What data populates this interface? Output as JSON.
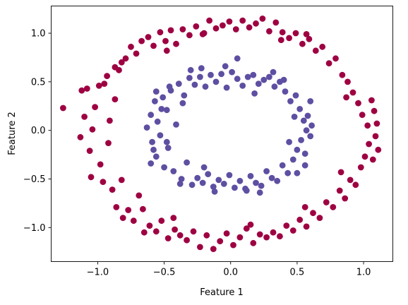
{
  "chart_data": {
    "type": "scatter",
    "title": "",
    "xlabel": "Feature 1",
    "ylabel": "Feature 2",
    "xlim": [
      -1.35,
      1.22
    ],
    "ylim": [
      -1.35,
      1.28
    ],
    "xticks": [
      -1.0,
      -0.5,
      0.0,
      0.5,
      1.0
    ],
    "xtick_labels": [
      "−1.0",
      "−0.5",
      "0.0",
      "0.5",
      "1.0"
    ],
    "yticks": [
      -1.0,
      -0.5,
      0.0,
      0.5,
      1.0
    ],
    "ytick_labels": [
      "−1.0",
      "−0.5",
      "0.0",
      "0.5",
      "1.0"
    ],
    "grid": false,
    "legend": "none",
    "series": [
      {
        "color": "#9e0142",
        "shape": "circle",
        "points": [
          [
            -1.26,
            0.23
          ],
          [
            -1.13,
            -0.07
          ],
          [
            -1.12,
            0.41
          ],
          [
            -1.1,
            0.14
          ],
          [
            -1.08,
            0.43
          ],
          [
            -1.06,
            -0.21
          ],
          [
            -1.05,
            -0.48
          ],
          [
            -1.04,
            0.01
          ],
          [
            -1.02,
            0.24
          ],
          [
            -0.99,
            0.46
          ],
          [
            -0.98,
            -0.35
          ],
          [
            -0.96,
            -0.53
          ],
          [
            -0.95,
            0.48
          ],
          [
            -0.93,
            0.56
          ],
          [
            -0.92,
            -0.13
          ],
          [
            -0.91,
            0.1
          ],
          [
            -0.89,
            -0.61
          ],
          [
            -0.87,
            0.65
          ],
          [
            -0.86,
            -0.79
          ],
          [
            -0.84,
            0.62
          ],
          [
            -0.82,
            0.7
          ],
          [
            -0.81,
            -0.9
          ],
          [
            -0.79,
            0.74
          ],
          [
            -0.77,
            -0.82
          ],
          [
            -0.75,
            0.86
          ],
          [
            -0.73,
            -0.93
          ],
          [
            -0.71,
            0.79
          ],
          [
            -0.69,
            -0.67
          ],
          [
            -0.67,
            0.92
          ],
          [
            -0.65,
            -1.05
          ],
          [
            -0.62,
            0.96
          ],
          [
            -0.61,
            -0.98
          ],
          [
            -0.58,
            0.87
          ],
          [
            -0.56,
            -1.04
          ],
          [
            -0.53,
            1.01
          ],
          [
            -0.52,
            -0.93
          ],
          [
            -0.49,
            0.92
          ],
          [
            -0.47,
            -1.11
          ],
          [
            -0.45,
            1.03
          ],
          [
            -0.42,
            -1.02
          ],
          [
            -0.41,
            0.89
          ],
          [
            -0.38,
            -1.08
          ],
          [
            -0.36,
            1.04
          ],
          [
            -0.33,
            -1.13
          ],
          [
            -0.31,
            0.98
          ],
          [
            -0.28,
            -1.04
          ],
          [
            -0.26,
            1.07
          ],
          [
            -0.23,
            -1.2
          ],
          [
            -0.21,
            0.99
          ],
          [
            -0.18,
            -1.08
          ],
          [
            -0.16,
            1.13
          ],
          [
            -0.13,
            -1.22
          ],
          [
            -0.11,
            1.05
          ],
          [
            -0.08,
            -1.14
          ],
          [
            -0.06,
            1.08
          ],
          [
            -0.03,
            -1.06
          ],
          [
            -0.01,
            1.12
          ],
          [
            0.02,
            -1.18
          ],
          [
            0.04,
            1.04
          ],
          [
            0.07,
            -1.1
          ],
          [
            0.09,
            1.13
          ],
          [
            0.12,
            -1.01
          ],
          [
            0.14,
            1.06
          ],
          [
            0.17,
            -1.16
          ],
          [
            0.19,
            1.1
          ],
          [
            0.22,
            -1.07
          ],
          [
            0.24,
            1.15
          ],
          [
            0.27,
            -1.1
          ],
          [
            0.29,
            1.02
          ],
          [
            0.32,
            -1.05
          ],
          [
            0.34,
            1.11
          ],
          [
            0.37,
            -1.09
          ],
          [
            0.39,
            1.01
          ],
          [
            0.42,
            -0.98
          ],
          [
            0.44,
            0.95
          ],
          [
            0.47,
            -1.03
          ],
          [
            0.49,
            1.0
          ],
          [
            0.52,
            -0.92
          ],
          [
            0.54,
            0.89
          ],
          [
            0.57,
            -0.99
          ],
          [
            0.59,
            0.94
          ],
          [
            0.62,
            -0.85
          ],
          [
            0.64,
            0.82
          ],
          [
            0.67,
            -0.9
          ],
          [
            0.69,
            0.86
          ],
          [
            0.72,
            -0.74
          ],
          [
            0.74,
            0.69
          ],
          [
            0.77,
            -0.79
          ],
          [
            0.79,
            0.74
          ],
          [
            0.82,
            -0.62
          ],
          [
            0.84,
            0.57
          ],
          [
            0.86,
            -0.7
          ],
          [
            0.88,
            0.5
          ],
          [
            0.9,
            -0.51
          ],
          [
            0.92,
            0.39
          ],
          [
            0.94,
            -0.56
          ],
          [
            0.96,
            0.28
          ],
          [
            0.98,
            -0.38
          ],
          [
            0.99,
            0.16
          ],
          [
            1.01,
            -0.27
          ],
          [
            1.03,
            0.05
          ],
          [
            1.04,
            -0.14
          ],
          [
            1.06,
            0.31
          ],
          [
            1.07,
            -0.3
          ],
          [
            1.08,
            0.2
          ],
          [
            1.09,
            -0.06
          ],
          [
            1.1,
            0.07
          ],
          [
            1.11,
            -0.2
          ],
          [
            -0.48,
            0.82
          ],
          [
            0.38,
            0.93
          ],
          [
            -0.82,
            -0.51
          ],
          [
            0.83,
            -0.43
          ],
          [
            -0.87,
            0.32
          ],
          [
            0.87,
            0.34
          ],
          [
            -0.66,
            -0.81
          ],
          [
            0.56,
            -0.79
          ],
          [
            -0.2,
            1.0
          ],
          [
            0.15,
            -0.97
          ],
          [
            0.57,
            0.99
          ],
          [
            -0.43,
            -0.9
          ]
        ]
      },
      {
        "color": "#5e4fa2",
        "shape": "circle",
        "points": [
          [
            -0.63,
            0.03
          ],
          [
            -0.6,
            0.16
          ],
          [
            -0.59,
            -0.12
          ],
          [
            -0.57,
            0.3
          ],
          [
            -0.56,
            -0.27
          ],
          [
            -0.55,
            0.09
          ],
          [
            -0.53,
            -0.05
          ],
          [
            -0.51,
            0.34
          ],
          [
            -0.5,
            -0.38
          ],
          [
            -0.48,
            0.21
          ],
          [
            -0.47,
            -0.18
          ],
          [
            -0.45,
            0.41
          ],
          [
            -0.43,
            -0.42
          ],
          [
            -0.41,
            0.06
          ],
          [
            -0.39,
            0.48
          ],
          [
            -0.37,
            -0.5
          ],
          [
            -0.35,
            0.36
          ],
          [
            -0.33,
            -0.33
          ],
          [
            -0.31,
            0.54
          ],
          [
            -0.29,
            -0.56
          ],
          [
            -0.27,
            0.47
          ],
          [
            -0.25,
            -0.49
          ],
          [
            -0.23,
            0.55
          ],
          [
            -0.21,
            -0.54
          ],
          [
            -0.19,
            0.45
          ],
          [
            -0.17,
            -0.45
          ],
          [
            -0.15,
            0.57
          ],
          [
            -0.13,
            -0.58
          ],
          [
            -0.11,
            0.5
          ],
          [
            -0.09,
            -0.51
          ],
          [
            -0.07,
            0.58
          ],
          [
            -0.05,
            -0.55
          ],
          [
            -0.03,
            0.44
          ],
          [
            -0.01,
            -0.46
          ],
          [
            0.01,
            0.6
          ],
          [
            0.03,
            -0.59
          ],
          [
            0.05,
            0.53
          ],
          [
            0.07,
            -0.52
          ],
          [
            0.09,
            0.46
          ],
          [
            0.11,
            -0.6
          ],
          [
            0.13,
            0.55
          ],
          [
            0.15,
            -0.47
          ],
          [
            0.17,
            0.57
          ],
          [
            0.19,
            -0.54
          ],
          [
            0.21,
            0.48
          ],
          [
            0.23,
            -0.57
          ],
          [
            0.25,
            0.52
          ],
          [
            0.27,
            -0.42
          ],
          [
            0.29,
            0.55
          ],
          [
            0.31,
            -0.49
          ],
          [
            0.33,
            0.45
          ],
          [
            0.35,
            -0.52
          ],
          [
            0.37,
            0.5
          ],
          [
            0.39,
            -0.36
          ],
          [
            0.41,
            0.4
          ],
          [
            0.43,
            -0.44
          ],
          [
            0.45,
            0.3
          ],
          [
            0.47,
            -0.3
          ],
          [
            0.49,
            0.36
          ],
          [
            0.5,
            -0.2
          ],
          [
            0.52,
            0.22
          ],
          [
            0.53,
            -0.1
          ],
          [
            0.55,
            0.1
          ],
          [
            0.56,
            -0.24
          ],
          [
            0.57,
            0.0
          ],
          [
            0.58,
            0.15
          ],
          [
            0.6,
            -0.06
          ],
          [
            0.61,
            0.05
          ],
          [
            -0.58,
            -0.2
          ],
          [
            -0.46,
            0.45
          ],
          [
            -0.38,
            -0.55
          ],
          [
            -0.22,
            0.64
          ],
          [
            0.05,
            0.74
          ],
          [
            0.12,
            -0.62
          ],
          [
            -0.04,
            0.66
          ],
          [
            0.4,
            0.52
          ],
          [
            0.5,
            -0.44
          ],
          [
            -0.3,
            0.62
          ],
          [
            -0.48,
            -0.12
          ],
          [
            0.32,
            0.6
          ],
          [
            0.22,
            -0.64
          ],
          [
            -0.12,
            -0.63
          ],
          [
            0.48,
            0.14
          ],
          [
            -0.52,
            0.22
          ],
          [
            -0.36,
            0.28
          ],
          [
            0.44,
            -0.12
          ],
          [
            -0.2,
            -0.38
          ],
          [
            0.18,
            0.38
          ],
          [
            -0.6,
            -0.34
          ],
          [
            0.6,
            0.3
          ],
          [
            -0.56,
            0.4
          ],
          [
            0.56,
            -0.36
          ]
        ]
      }
    ]
  }
}
